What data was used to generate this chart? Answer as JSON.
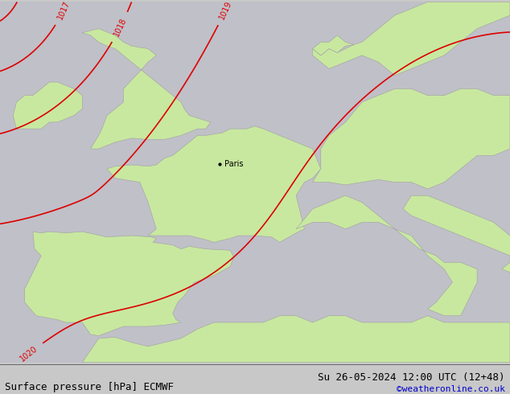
{
  "title_left": "Surface pressure [hPa] ECMWF",
  "title_right": "Su 26-05-2024 12:00 UTC (12+48)",
  "credit": "©weatheronline.co.uk",
  "bg_color": "#c8c8c8",
  "land_color": "#c8e8a0",
  "sea_color": "#c0c0c8",
  "coast_color": "#a0a0a0",
  "isobar_color_red": "#dd0000",
  "isobar_color_blue": "#0000cc",
  "isobar_color_black": "#000000",
  "label_fontsize": 7,
  "title_fontsize": 9,
  "credit_color": "#0000cc",
  "figsize": [
    6.34,
    4.9
  ],
  "dpi": 100,
  "paris_lon": 2.35,
  "paris_lat": 48.85,
  "map_extent": [
    -11,
    20,
    34,
    61
  ]
}
